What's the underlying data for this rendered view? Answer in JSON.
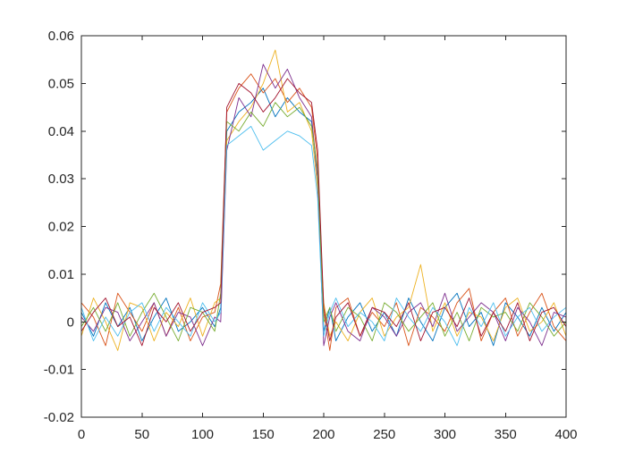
{
  "chart_data": {
    "type": "line",
    "title": "",
    "xlabel": "",
    "ylabel": "",
    "xlim": [
      0,
      400
    ],
    "ylim": [
      -0.02,
      0.06
    ],
    "grid": false,
    "legend": "none",
    "x_ticks": [
      "0",
      "50",
      "100",
      "150",
      "200",
      "250",
      "300",
      "350",
      "400"
    ],
    "y_ticks": [
      "-0.02",
      "-0.01",
      "0",
      "0.01",
      "0.02",
      "0.03",
      "0.04",
      "0.05",
      "0.06"
    ],
    "x_tick_values": [
      0,
      50,
      100,
      150,
      200,
      250,
      300,
      350,
      400
    ],
    "y_tick_values": [
      -0.02,
      -0.01,
      0,
      0.01,
      0.02,
      0.03,
      0.04,
      0.05,
      0.06
    ],
    "series_colors": [
      "#0072BD",
      "#D95319",
      "#EDB120",
      "#7E2F8E",
      "#77AC30",
      "#4DBEEE",
      "#A2142F"
    ],
    "x": [
      0,
      10,
      20,
      30,
      40,
      50,
      60,
      70,
      80,
      90,
      100,
      110,
      115,
      120,
      130,
      140,
      150,
      160,
      170,
      180,
      190,
      195,
      200,
      205,
      210,
      220,
      230,
      240,
      250,
      260,
      270,
      280,
      290,
      300,
      310,
      320,
      330,
      340,
      350,
      360,
      370,
      380,
      390,
      400
    ],
    "series": [
      {
        "values": [
          0.002,
          -0.003,
          0.004,
          -0.001,
          0.003,
          -0.004,
          0.001,
          0.005,
          -0.002,
          0.0,
          0.003,
          -0.001,
          0.003,
          0.04,
          0.044,
          0.046,
          0.049,
          0.043,
          0.047,
          0.044,
          0.042,
          0.03,
          -0.002,
          0.003,
          -0.004,
          0.001,
          0.004,
          -0.002,
          0.002,
          -0.003,
          0.005,
          0.0,
          -0.004,
          0.003,
          0.006,
          -0.001,
          0.002,
          -0.005,
          0.004,
          0.001,
          -0.003,
          0.003,
          -0.002,
          0.002
        ]
      },
      {
        "values": [
          0.004,
          0.001,
          -0.005,
          0.006,
          0.002,
          -0.002,
          0.004,
          -0.003,
          0.003,
          -0.004,
          0.001,
          0.002,
          0.008,
          0.044,
          0.049,
          0.052,
          0.048,
          0.051,
          0.046,
          0.049,
          0.045,
          0.034,
          0.002,
          -0.006,
          0.003,
          0.005,
          -0.003,
          0.002,
          -0.001,
          0.004,
          -0.005,
          0.003,
          0.001,
          -0.002,
          0.004,
          0.007,
          -0.004,
          0.002,
          0.005,
          -0.003,
          0.002,
          0.006,
          -0.001,
          -0.004
        ]
      },
      {
        "values": [
          -0.003,
          0.005,
          0.0,
          -0.006,
          0.004,
          0.003,
          -0.004,
          0.002,
          -0.001,
          0.005,
          -0.003,
          0.004,
          0.005,
          0.038,
          0.042,
          0.045,
          0.05,
          0.057,
          0.044,
          0.046,
          0.04,
          0.028,
          0.004,
          -0.003,
          0.0,
          -0.004,
          0.002,
          0.005,
          -0.003,
          0.001,
          0.003,
          0.012,
          -0.002,
          0.004,
          -0.003,
          0.002,
          0.001,
          -0.004,
          0.003,
          0.005,
          -0.002,
          0.0,
          0.004,
          -0.003
        ]
      },
      {
        "values": [
          0.001,
          -0.002,
          0.003,
          0.002,
          -0.004,
          0.0,
          0.004,
          -0.003,
          0.002,
          0.001,
          -0.005,
          0.001,
          0.0,
          0.036,
          0.047,
          0.043,
          0.054,
          0.049,
          0.053,
          0.047,
          0.043,
          0.03,
          -0.005,
          0.001,
          0.004,
          -0.002,
          -0.004,
          0.003,
          0.001,
          -0.003,
          0.002,
          0.004,
          -0.001,
          0.006,
          -0.002,
          0.001,
          0.004,
          0.002,
          -0.004,
          0.003,
          0.0,
          -0.005,
          0.002,
          0.001
        ]
      },
      {
        "values": [
          -0.001,
          0.003,
          -0.002,
          0.004,
          -0.003,
          0.002,
          0.006,
          0.001,
          -0.004,
          0.003,
          0.002,
          -0.002,
          0.006,
          0.042,
          0.04,
          0.044,
          0.041,
          0.046,
          0.043,
          0.045,
          0.041,
          0.032,
          0.0,
          0.003,
          -0.002,
          0.003,
          0.001,
          -0.004,
          0.004,
          0.002,
          -0.002,
          0.001,
          0.004,
          -0.003,
          0.002,
          -0.004,
          0.003,
          0.001,
          0.002,
          -0.002,
          0.004,
          0.001,
          -0.003,
          0.0
        ]
      },
      {
        "values": [
          0.003,
          -0.004,
          0.001,
          -0.003,
          0.002,
          0.004,
          -0.002,
          0.003,
          0.0,
          -0.003,
          0.004,
          0.0,
          0.002,
          0.037,
          0.039,
          0.041,
          0.036,
          0.038,
          0.04,
          0.039,
          0.037,
          0.026,
          -0.003,
          0.002,
          0.005,
          -0.001,
          0.002,
          0.0,
          -0.004,
          0.005,
          0.001,
          -0.002,
          0.003,
          0.0,
          -0.005,
          0.003,
          -0.001,
          0.004,
          -0.003,
          0.001,
          0.003,
          -0.002,
          0.001,
          0.003
        ]
      },
      {
        "values": [
          -0.002,
          0.002,
          0.005,
          -0.001,
          0.001,
          -0.005,
          0.003,
          0.0,
          0.004,
          -0.002,
          0.002,
          0.003,
          0.004,
          0.045,
          0.05,
          0.048,
          0.044,
          0.047,
          0.051,
          0.048,
          0.046,
          0.036,
          0.003,
          -0.004,
          0.001,
          0.004,
          -0.003,
          0.003,
          0.002,
          -0.001,
          0.004,
          -0.004,
          0.002,
          0.003,
          -0.001,
          0.005,
          -0.003,
          0.002,
          -0.002,
          0.004,
          -0.004,
          0.002,
          0.003,
          -0.001
        ]
      }
    ]
  }
}
